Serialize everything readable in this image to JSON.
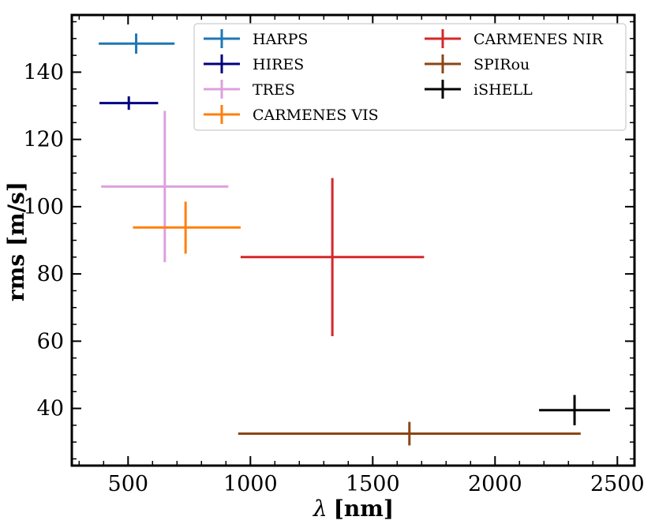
{
  "chart_data": {
    "type": "scatter",
    "title": "",
    "xlabel_symbol": "λ",
    "xlabel_unit": "[nm]",
    "ylabel": "rms [m/s]",
    "xlim": [
      270,
      2570
    ],
    "ylim": [
      23,
      157
    ],
    "x_ticks": [
      500,
      1000,
      1500,
      2000,
      2500
    ],
    "y_ticks": [
      40,
      60,
      80,
      100,
      120,
      140
    ],
    "x_minor_step": 100,
    "y_minor_step": 5,
    "legend_position": "top-right",
    "series": [
      {
        "name": "HARPS",
        "color": "#1f77b4",
        "x": 533,
        "y": 148.5,
        "xmin": 380,
        "xmax": 690,
        "ymin": 145.5,
        "ymax": 151.5
      },
      {
        "name": "HIRES",
        "color": "#000080",
        "x": 503,
        "y": 130.8,
        "xmin": 383,
        "xmax": 623,
        "ymin": 128.8,
        "ymax": 132.8
      },
      {
        "name": "TRES",
        "color": "#dda0dd",
        "x": 650,
        "y": 106,
        "xmin": 390,
        "xmax": 910,
        "ymin": 83.5,
        "ymax": 128.5
      },
      {
        "name": "CARMENES VIS",
        "color": "#ff7f0e",
        "x": 735,
        "y": 93.8,
        "xmin": 520,
        "xmax": 960,
        "ymin": 86,
        "ymax": 101.5
      },
      {
        "name": "CARMENES NIR",
        "color": "#d62728",
        "x": 1335,
        "y": 85,
        "xmin": 960,
        "xmax": 1710,
        "ymin": 61.5,
        "ymax": 108.5
      },
      {
        "name": "SPIRou",
        "color": "#8b4513",
        "x": 1650,
        "y": 32.5,
        "xmin": 950,
        "xmax": 2350,
        "ymin": 29,
        "ymax": 36
      },
      {
        "name": "iSHELL",
        "color": "#000000",
        "x": 2325,
        "y": 39.5,
        "xmin": 2180,
        "xmax": 2470,
        "ymin": 35,
        "ymax": 44
      }
    ]
  }
}
